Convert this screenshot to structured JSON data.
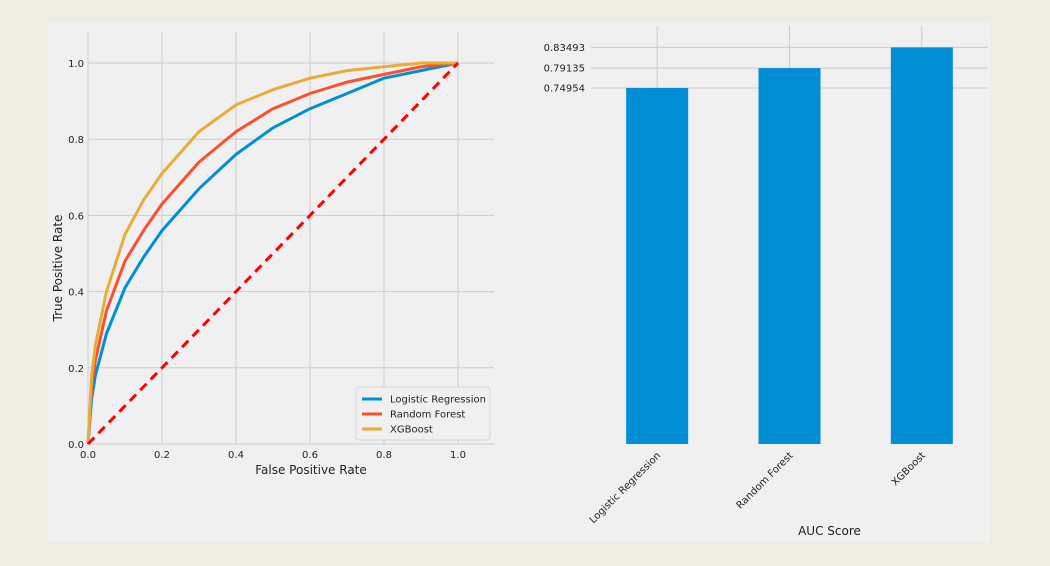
{
  "chart_data": [
    {
      "type": "line",
      "xlabel": "False Positive Rate",
      "ylabel": "True Positive Rate",
      "xlim": [
        0,
        1.0
      ],
      "ylim": [
        0,
        1.0
      ],
      "xticks": [
        "0.0",
        "0.2",
        "0.4",
        "0.6",
        "0.8",
        "1.0"
      ],
      "yticks": [
        "0.0",
        "0.2",
        "0.4",
        "0.6",
        "0.8",
        "1.0"
      ],
      "grid": true,
      "legend_position": "bottom-right",
      "series": [
        {
          "name": "Logistic Regression",
          "color": "#008fd5",
          "x": [
            0,
            0.01,
            0.02,
            0.05,
            0.1,
            0.15,
            0.2,
            0.3,
            0.4,
            0.5,
            0.6,
            0.7,
            0.8,
            0.9,
            1.0
          ],
          "y": [
            0,
            0.12,
            0.18,
            0.29,
            0.41,
            0.49,
            0.56,
            0.67,
            0.76,
            0.83,
            0.88,
            0.92,
            0.96,
            0.98,
            1.0
          ]
        },
        {
          "name": "Random Forest",
          "color": "#fc4f30",
          "x": [
            0,
            0.01,
            0.02,
            0.05,
            0.1,
            0.15,
            0.2,
            0.3,
            0.4,
            0.5,
            0.6,
            0.7,
            0.8,
            0.9,
            1.0
          ],
          "y": [
            0,
            0.15,
            0.22,
            0.35,
            0.48,
            0.56,
            0.63,
            0.74,
            0.82,
            0.88,
            0.92,
            0.95,
            0.97,
            0.99,
            1.0
          ]
        },
        {
          "name": "XGBoost",
          "color": "#e5ae38",
          "x": [
            0,
            0.01,
            0.02,
            0.05,
            0.1,
            0.15,
            0.2,
            0.3,
            0.4,
            0.5,
            0.6,
            0.7,
            0.8,
            0.9,
            1.0
          ],
          "y": [
            0,
            0.18,
            0.26,
            0.4,
            0.55,
            0.64,
            0.71,
            0.82,
            0.89,
            0.93,
            0.96,
            0.98,
            0.99,
            1.0,
            1.0
          ]
        },
        {
          "role": "baseline",
          "color": "#ff0000",
          "dashed": true,
          "x": [
            0,
            1.0
          ],
          "y": [
            0,
            1.0
          ]
        }
      ]
    },
    {
      "type": "bar",
      "categories": [
        "Logistic Regression",
        "Random Forest",
        "XGBoost"
      ],
      "values": [
        0.74954,
        0.79135,
        0.83493
      ],
      "ytick_labels": [
        "0.74954",
        "0.79135",
        "0.83493"
      ],
      "xlabel": "AUC Score",
      "ylim": [
        0,
        0.84
      ],
      "bar_color": "#008fd5",
      "grid": true
    }
  ]
}
